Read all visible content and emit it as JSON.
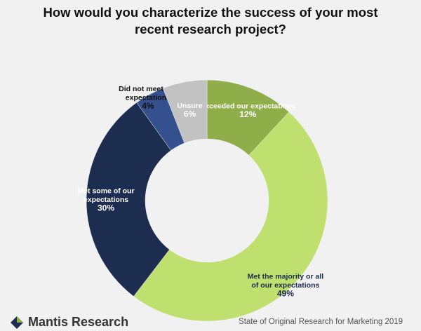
{
  "chart_data": {
    "type": "pie",
    "title_lines": [
      "How would you characterize the success of your most",
      "recent research project?"
    ],
    "slices": [
      {
        "label_lines": [
          "Exceeded our expectations"
        ],
        "value": 12,
        "value_label": "12%",
        "color": "#8fae4a",
        "text_color": "#ffffff"
      },
      {
        "label_lines": [
          "Met the majority or all",
          "of our expectations"
        ],
        "value": 49,
        "value_label": "49%",
        "color": "#bfe06e",
        "text_color": "#1a2c4e"
      },
      {
        "label_lines": [
          "Met some of our",
          "expectations"
        ],
        "value": 30,
        "value_label": "30%",
        "color": "#1c2d4f",
        "text_color": "#ffffff"
      },
      {
        "label_lines": [
          "Did not meet our",
          "expectations"
        ],
        "value": 4,
        "value_label": "4%",
        "color": "#34508e",
        "text_color": "#111111"
      },
      {
        "label_lines": [
          "Unsure"
        ],
        "value": 6,
        "value_label": "6%",
        "color": "#c2c2c2",
        "text_color": "#ffffff"
      }
    ]
  },
  "footer": {
    "brand": "Mantis Research",
    "source": "State of Original Research for Marketing 2019",
    "logo_icon": "mantis-logo-icon"
  }
}
